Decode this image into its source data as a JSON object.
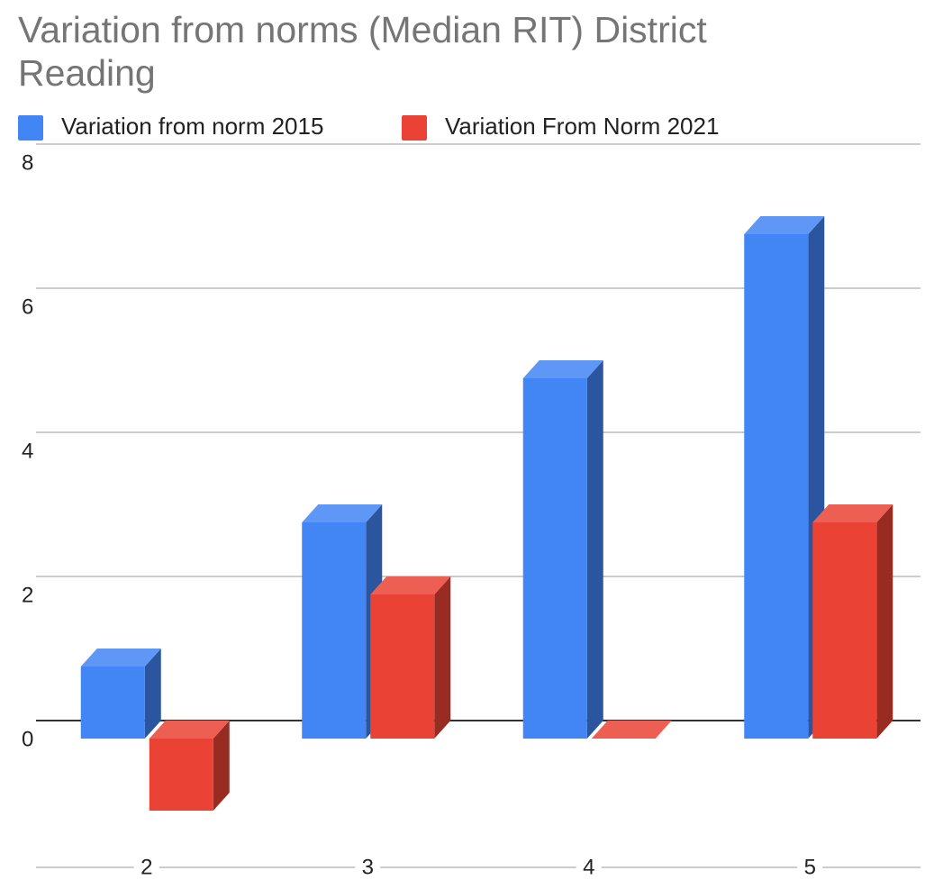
{
  "chart_data": {
    "type": "bar3d",
    "title": "Variation from norms (Median RIT) District Reading",
    "categories": [
      "2",
      "3",
      "4",
      "5"
    ],
    "series": [
      {
        "name": "Variation from norm 2015",
        "color": "#4285f4",
        "values": [
          1,
          3,
          5,
          7
        ]
      },
      {
        "name": "Variation From Norm 2021",
        "color": "#ea4335",
        "values": [
          -1,
          2,
          0,
          3
        ]
      }
    ],
    "ylim": [
      -2,
      8
    ],
    "yticks": [
      0,
      2,
      4,
      6,
      8
    ],
    "grid": true,
    "legend": "top"
  }
}
